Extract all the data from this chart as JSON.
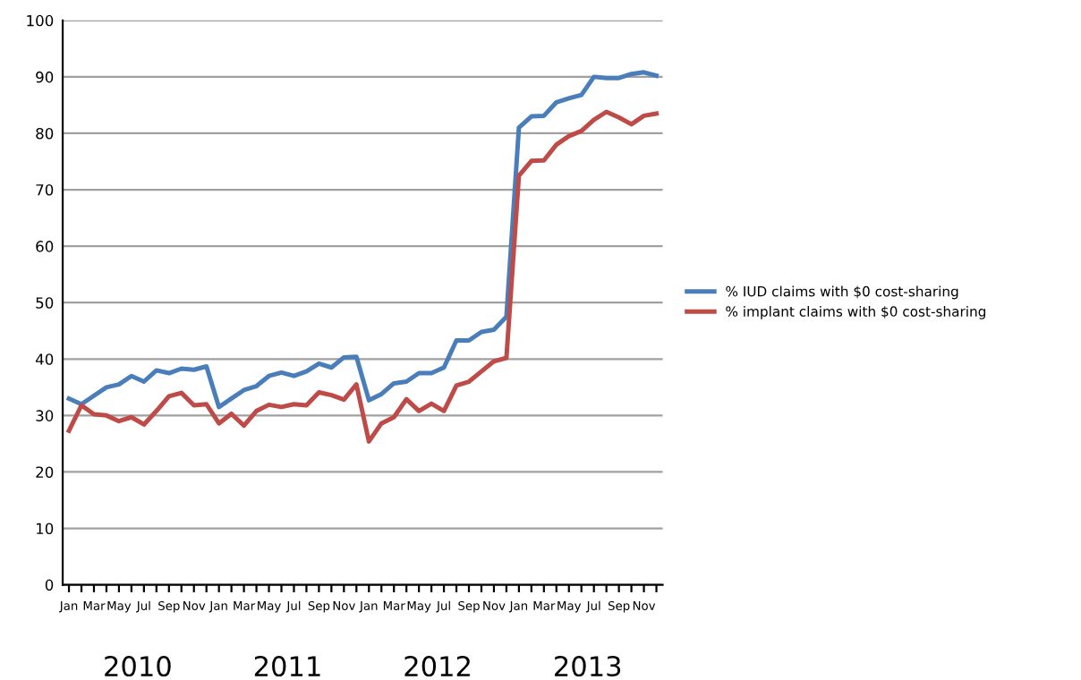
{
  "chart_data": {
    "type": "line",
    "categories": [
      "Jan",
      null,
      "Mar",
      null,
      "May",
      null,
      "Jul",
      null,
      "Sep",
      null,
      "Nov",
      null,
      "Jan",
      null,
      "Mar",
      null,
      "May",
      null,
      "Jul",
      null,
      "Sep",
      null,
      "Nov",
      null,
      "Jan",
      null,
      "Mar",
      null,
      "May",
      null,
      "Jul",
      null,
      "Sep",
      null,
      "Nov",
      null,
      "Jan",
      null,
      "Mar",
      null,
      "May",
      null,
      "Jul",
      null,
      "Sep",
      null,
      "Nov",
      null
    ],
    "series": [
      {
        "name": "% IUD claims with $0 cost-sharing",
        "color": "#4a7ebb",
        "values": [
          33,
          32,
          33.5,
          35,
          35.5,
          37,
          36,
          38,
          37.5,
          38.3,
          38.1,
          38.7,
          31.5,
          33,
          34.5,
          35.2,
          37,
          37.6,
          37,
          37.8,
          39.2,
          38.5,
          40.3,
          40.4,
          32.7,
          33.8,
          35.7,
          36,
          37.5,
          37.5,
          38.5,
          43.3,
          43.3,
          44.8,
          45.2,
          47.5,
          81,
          83,
          83.1,
          85.5,
          86.2,
          86.8,
          90,
          89.8,
          89.8,
          90.5,
          90.8,
          90.2
        ]
      },
      {
        "name": "% implant claims with $0 cost-sharing",
        "color": "#be4b48",
        "values": [
          27.3,
          31.8,
          30.2,
          30,
          29,
          29.7,
          28.4,
          30.8,
          33.4,
          34,
          31.8,
          32,
          28.6,
          30.3,
          28.2,
          30.8,
          31.9,
          31.5,
          32,
          31.8,
          34.1,
          33.6,
          32.8,
          35.5,
          25.4,
          28.6,
          29.7,
          32.9,
          30.8,
          32.1,
          30.8,
          35.3,
          36,
          37.8,
          39.6,
          40.2,
          72.5,
          75.1,
          75.2,
          78,
          79.5,
          80.4,
          82.4,
          83.8,
          82.8,
          81.6,
          83.1,
          83.5
        ]
      }
    ],
    "annotations": [
      "2010",
      "2011",
      "2012",
      "2013"
    ],
    "ylim": [
      0,
      100
    ],
    "yticks": [
      0,
      10,
      20,
      30,
      40,
      50,
      60,
      70,
      80,
      90,
      100
    ],
    "grid": "y",
    "legend": "right",
    "marker": "none",
    "line_style": "solid"
  }
}
